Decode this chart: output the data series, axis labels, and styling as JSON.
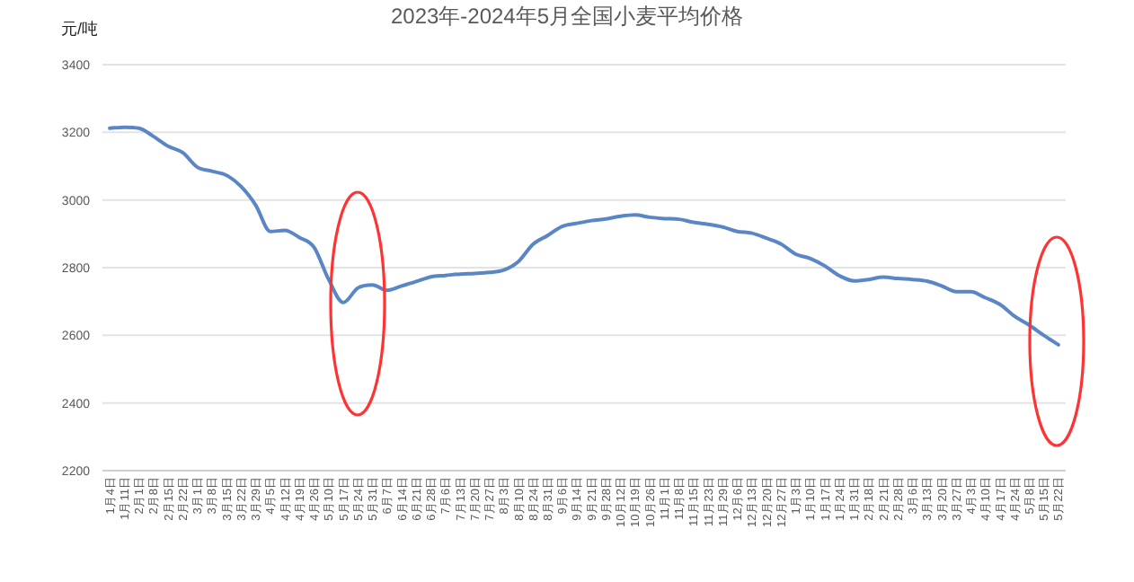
{
  "chart_data": {
    "type": "line",
    "title": "2023年-2024年5月全国小麦平均价格",
    "ylabel": "元/吨",
    "categories": [
      "1月4日",
      "1月11日",
      "2月1日",
      "2月8日",
      "2月15日",
      "2月22日",
      "3月1日",
      "3月8日",
      "3月15日",
      "3月22日",
      "3月29日",
      "4月5日",
      "4月12日",
      "4月19日",
      "4月26日",
      "5月10日",
      "5月17日",
      "5月24日",
      "5月31日",
      "6月7日",
      "6月14日",
      "6月21日",
      "6月28日",
      "7月6日",
      "7月13日",
      "7月20日",
      "7月27日",
      "8月3日",
      "8月10日",
      "8月24日",
      "8月31日",
      "9月6日",
      "9月14日",
      "9月21日",
      "9月28日",
      "10月12日",
      "10月19日",
      "10月26日",
      "11月1日",
      "11月8日",
      "11月15日",
      "11月23日",
      "11月29日",
      "12月6日",
      "12月13日",
      "12月20日",
      "12月27日",
      "1月3日",
      "1月10日",
      "1月17日",
      "1月24日",
      "1月31日",
      "2月18日",
      "2月21日",
      "2月28日",
      "3月6日",
      "3月13日",
      "3月20日",
      "3月27日",
      "4月3日",
      "4月10日",
      "4月17日",
      "4月24日",
      "5月8日",
      "5月15日",
      "5月22日"
    ],
    "series": [
      {
        "color": "#5b86c5",
        "values": [
          3212,
          3215,
          3212,
          3188,
          3159,
          3140,
          3097,
          3085,
          3073,
          3040,
          2985,
          2907,
          2910,
          2889,
          2860,
          2765,
          2697,
          2740,
          2749,
          2733,
          2746,
          2759,
          2773,
          2777,
          2781,
          2783,
          2786,
          2793,
          2818,
          2869,
          2895,
          2922,
          2931,
          2939,
          2944,
          2952,
          2956,
          2949,
          2945,
          2943,
          2934,
          2928,
          2920,
          2907,
          2902,
          2887,
          2870,
          2840,
          2827,
          2805,
          2776,
          2761,
          2765,
          2772,
          2768,
          2765,
          2760,
          2746,
          2729,
          2729,
          2711,
          2691,
          2656,
          2630,
          2600,
          2572
        ]
      }
    ],
    "ylim": [
      2200,
      3400
    ],
    "yticks": [
      2200,
      2400,
      2600,
      2800,
      3000,
      3200,
      3400
    ],
    "grid": "y",
    "marker": "none",
    "line_style": "solid"
  }
}
